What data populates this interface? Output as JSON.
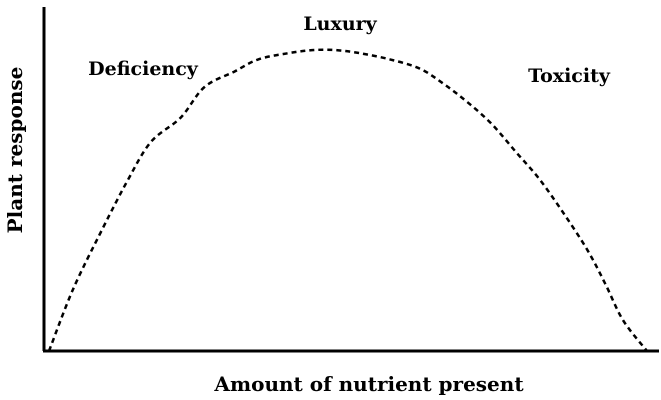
{
  "chart_data": {
    "type": "line",
    "xlabel": "Amount of nutrient present",
    "ylabel": "Plant response",
    "xlim": [
      0,
      100
    ],
    "ylim": [
      0,
      100
    ],
    "line_style": "dashed",
    "grid": false,
    "legend": "none",
    "series": [
      {
        "x": [
          0,
          4,
          9,
          13,
          17,
          22,
          26,
          31,
          35,
          40,
          44,
          48,
          52,
          57,
          62,
          66,
          70,
          74,
          78,
          82,
          86,
          90,
          93,
          96,
          100
        ],
        "y": [
          0,
          20,
          40,
          55,
          68,
          76,
          86,
          91,
          95,
          97,
          98,
          98,
          97,
          95,
          92,
          87,
          81,
          74,
          65,
          56,
          45,
          33,
          22,
          10,
          0
        ]
      }
    ],
    "annotations": [
      {
        "text": "Deficiency"
      },
      {
        "text": "Luxury"
      },
      {
        "text": "Toxicity"
      }
    ],
    "colors": {
      "line": "#000000",
      "axes": "#000000",
      "text": "#000000"
    }
  }
}
